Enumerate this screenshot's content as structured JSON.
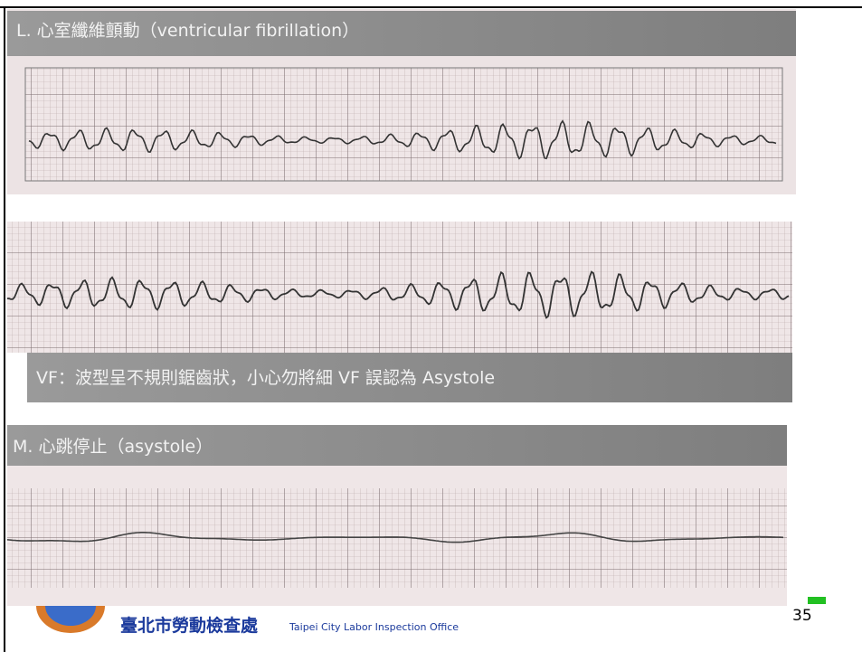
{
  "slide": {
    "section_l_title": "L. 心室纖維顫動（ventricular fibrillation）",
    "vf_note": "VF：波型呈不規則鋸齒狀，小心勿將細 VF 誤認為 Asystole",
    "section_m_title": "M. 心跳停止（asystole）",
    "footer": {
      "org_name": "臺北市勞動檢查處",
      "org_name_en": "Taipei City Labor Inspection Office",
      "page_number": "35"
    }
  }
}
